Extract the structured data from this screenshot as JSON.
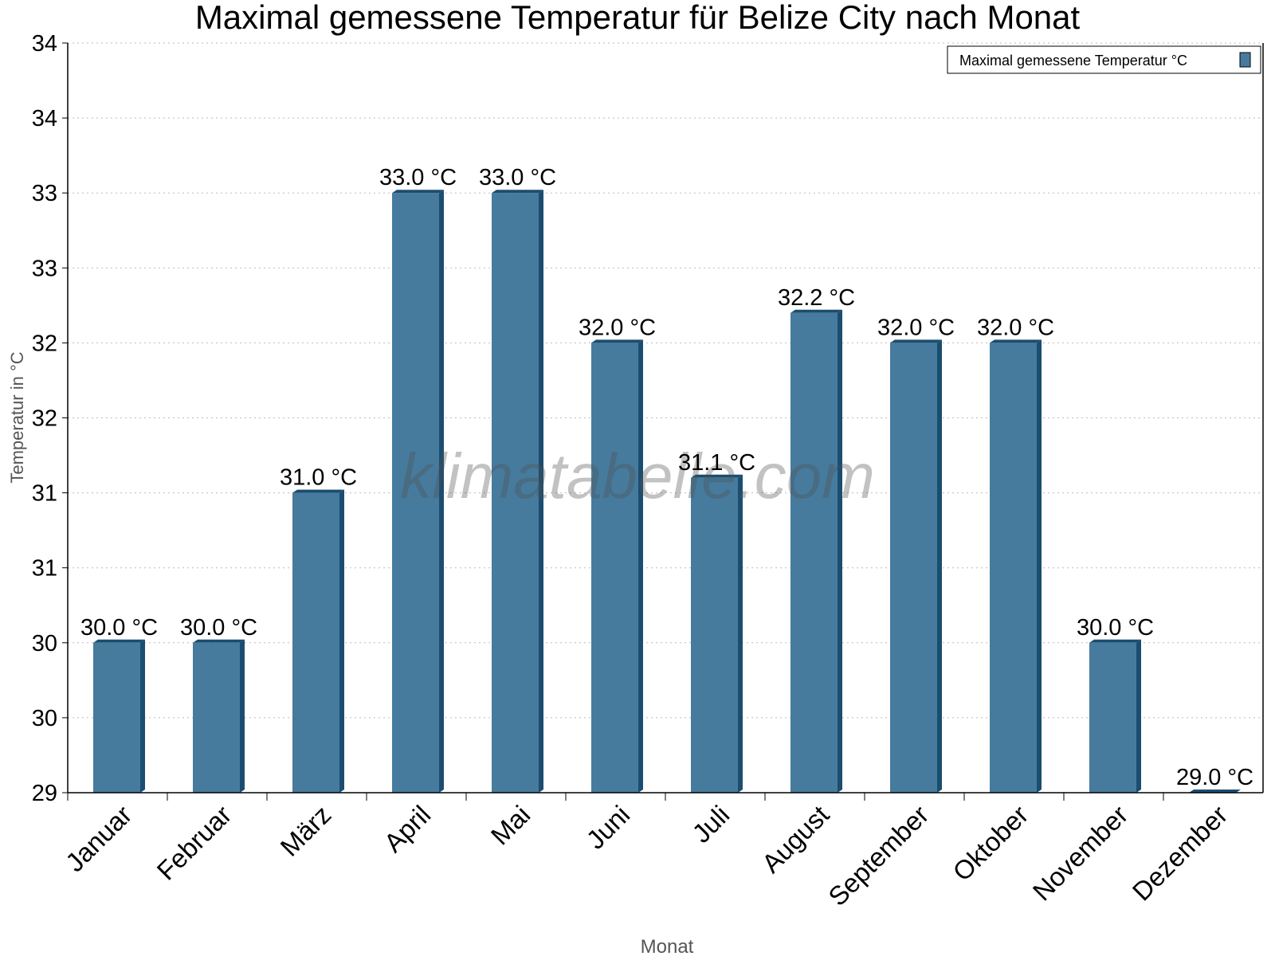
{
  "chart_data": {
    "type": "bar",
    "title": "Maximal gemessene Temperatur für Belize City nach Monat",
    "xlabel": "Monat",
    "ylabel": "Temperatur in °C",
    "ylim": [
      29,
      34
    ],
    "y_ticks": [
      29,
      29.5,
      30,
      30.5,
      31,
      31.5,
      32,
      32.5,
      33,
      33.5,
      34
    ],
    "y_tick_labels": [
      "29",
      "30",
      "30",
      "31",
      "31",
      "32",
      "32",
      "33",
      "33",
      "34",
      "34"
    ],
    "grid": true,
    "legend_position": "top-right",
    "categories": [
      "Januar",
      "Februar",
      "März",
      "April",
      "Mai",
      "Juni",
      "Juli",
      "August",
      "September",
      "Oktober",
      "November",
      "Dezember"
    ],
    "series": [
      {
        "name": "Maximal gemessene Temperatur °C",
        "color": "#467b9d",
        "side_color": "#1b4d70",
        "values": [
          30.0,
          30.0,
          31.0,
          33.0,
          33.0,
          32.0,
          31.1,
          32.2,
          32.0,
          32.0,
          30.0,
          29.0
        ],
        "labels": [
          "30.0 °C",
          "30.0 °C",
          "31.0 °C",
          "33.0 °C",
          "33.0 °C",
          "32.0 °C",
          "31.1 °C",
          "32.2 °C",
          "32.0 °C",
          "32.0 °C",
          "30.0 °C",
          "29.0 °C"
        ]
      }
    ],
    "watermark": "klimatabelle.com"
  }
}
